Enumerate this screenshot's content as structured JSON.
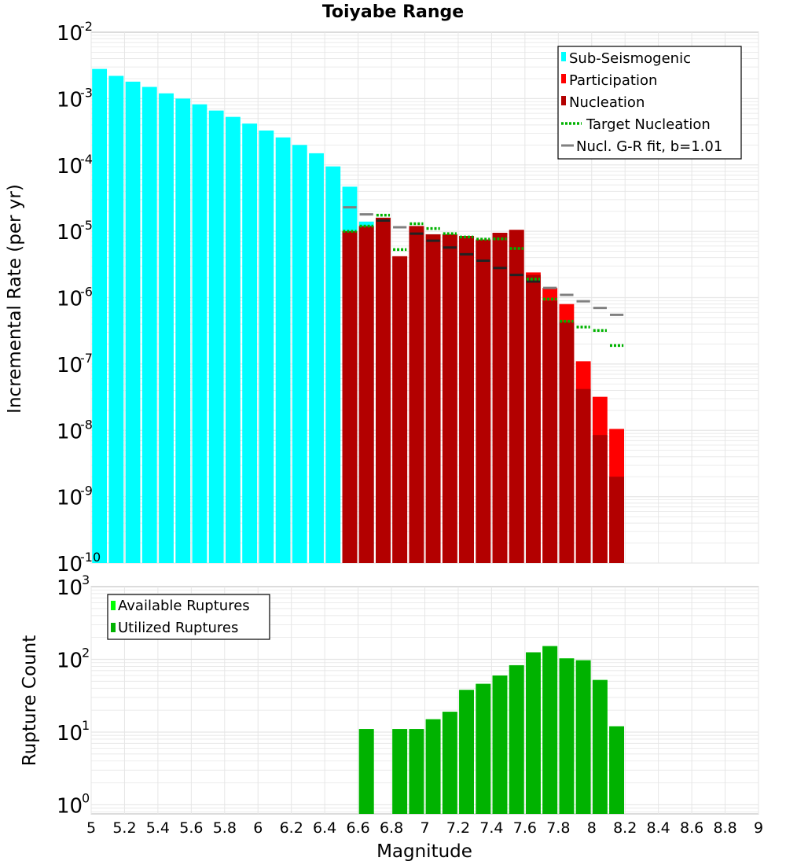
{
  "chart_data": [
    {
      "type": "bar",
      "title": "Toiyabe Range",
      "xlabel": "",
      "ylabel": "Incremental Rate (per yr)",
      "yscale": "log",
      "ylim": [
        1e-10,
        0.01
      ],
      "xlim": [
        5,
        9
      ],
      "bin_width": 0.1,
      "y_tick_exponents": [
        -2,
        -3,
        -4,
        -5,
        -6,
        -7,
        -8,
        -9,
        -10
      ],
      "legend_position": "top-right",
      "legend": [
        "Sub-Seismogenic",
        "Participation",
        "Nucleation",
        "Target Nucleation",
        "Nucl. G-R fit, b=1.01"
      ],
      "colors": {
        "sub_seismogenic": "#00ffff",
        "participation": "#ff0000",
        "nucleation": "#b30000",
        "target_nucleation": "#00b200",
        "gr_fit": "#808080",
        "grid": "#e6e6e6"
      },
      "series": [
        {
          "name": "Sub-Seismogenic",
          "style": "bar",
          "x": [
            5.05,
            5.15,
            5.25,
            5.35,
            5.45,
            5.55,
            5.65,
            5.75,
            5.85,
            5.95,
            6.05,
            6.15,
            6.25,
            6.35,
            6.45,
            6.55,
            6.65,
            6.75
          ],
          "values": [
            0.0028,
            0.0022,
            0.0018,
            0.0015,
            0.0012,
            0.001,
            0.00082,
            0.00066,
            0.00053,
            0.00042,
            0.00033,
            0.00026,
            0.0002,
            0.00015,
            9.5e-05,
            4.7e-05,
            1.4e-05,
            1.6e-05
          ]
        },
        {
          "name": "Participation",
          "style": "bar",
          "x": [
            6.55,
            6.65,
            6.75,
            6.85,
            6.95,
            7.05,
            7.15,
            7.25,
            7.35,
            7.45,
            7.55,
            7.65,
            7.75,
            7.85,
            7.95,
            8.05,
            8.15
          ],
          "values": [
            1e-05,
            1.2e-05,
            1.6e-05,
            4.2e-06,
            1.2e-05,
            9e-06,
            9e-06,
            8.5e-06,
            7.5e-06,
            9.5e-06,
            1.05e-05,
            2.4e-06,
            1.4e-06,
            8e-07,
            1.1e-07,
            3.2e-08,
            1.05e-08
          ]
        },
        {
          "name": "Nucleation",
          "style": "bar",
          "x": [
            6.55,
            6.65,
            6.75,
            6.85,
            6.95,
            7.05,
            7.15,
            7.25,
            7.35,
            7.45,
            7.55,
            7.65,
            7.75,
            7.85,
            7.95,
            8.05,
            8.15
          ],
          "values": [
            1e-05,
            1.2e-05,
            1.6e-05,
            4.2e-06,
            1.2e-05,
            9e-06,
            9e-06,
            8.5e-06,
            7.5e-06,
            9.5e-06,
            1.05e-05,
            2.2e-06,
            9e-07,
            4.3e-07,
            4.2e-08,
            8.5e-09,
            2e-09
          ]
        },
        {
          "name": "Target Nucleation",
          "style": "dotted-step",
          "x": [
            6.55,
            6.65,
            6.75,
            6.85,
            6.95,
            7.05,
            7.15,
            7.25,
            7.35,
            7.45,
            7.55,
            7.65,
            7.75,
            7.85,
            7.95,
            8.05,
            8.15
          ],
          "values": [
            1e-05,
            1.2e-05,
            1.75e-05,
            5.3e-06,
            1.3e-05,
            1.1e-05,
            9.2e-06,
            8.2e-06,
            7.6e-06,
            7.7e-06,
            5.5e-06,
            1.9e-06,
            9.5e-07,
            4.4e-07,
            3.6e-07,
            3.2e-07,
            1.9e-07
          ]
        },
        {
          "name": "Nucl. G-R fit, b=1.01",
          "style": "step",
          "x": [
            6.55,
            6.65,
            6.75,
            6.85,
            6.95,
            7.05,
            7.15,
            7.25,
            7.35,
            7.45,
            7.55,
            7.65,
            7.75,
            7.85,
            7.95,
            8.05,
            8.15
          ],
          "values": [
            2.3e-05,
            1.8e-05,
            1.45e-05,
            1.15e-05,
            9.2e-06,
            7.2e-06,
            5.7e-06,
            4.5e-06,
            3.6e-06,
            2.8e-06,
            2.2e-06,
            1.75e-06,
            1.4e-06,
            1.1e-06,
            8.8e-07,
            7e-07,
            5.5e-07
          ]
        }
      ]
    },
    {
      "type": "bar",
      "title": "",
      "xlabel": "Magnitude",
      "ylabel": "Rupture Count",
      "yscale": "log",
      "ylim": [
        0.75,
        1000
      ],
      "xlim": [
        5,
        9
      ],
      "bin_width": 0.1,
      "y_tick_exponents": [
        3,
        2,
        1,
        0
      ],
      "x_ticks": [
        "5",
        "5.2",
        "5.4",
        "5.6",
        "5.8",
        "6",
        "6.2",
        "6.4",
        "6.6",
        "6.8",
        "7",
        "7.2",
        "7.4",
        "7.6",
        "7.8",
        "8",
        "8.2",
        "8.4",
        "8.6",
        "8.8",
        "9"
      ],
      "legend_position": "top-left",
      "legend": [
        "Available Ruptures",
        "Utilized Ruptures"
      ],
      "colors": {
        "available": "#00ff00",
        "utilized": "#00b200"
      },
      "series": [
        {
          "name": "Available Ruptures",
          "x": [
            6.65,
            6.85,
            6.95,
            7.05,
            7.15,
            7.25,
            7.35,
            7.45,
            7.55,
            7.65,
            7.75,
            7.85,
            7.95,
            8.05,
            8.15
          ],
          "values": [
            11,
            11,
            11,
            15,
            19,
            38,
            46,
            60,
            83,
            125,
            152,
            103,
            97,
            52,
            12
          ]
        },
        {
          "name": "Utilized Ruptures",
          "x": [
            6.65,
            6.85,
            6.95,
            7.05,
            7.15,
            7.25,
            7.35,
            7.45,
            7.55,
            7.65,
            7.75,
            7.85,
            7.95,
            8.05,
            8.15
          ],
          "values": [
            11,
            11,
            11,
            15,
            19,
            38,
            46,
            60,
            83,
            125,
            152,
            103,
            97,
            52,
            12
          ]
        }
      ]
    }
  ]
}
